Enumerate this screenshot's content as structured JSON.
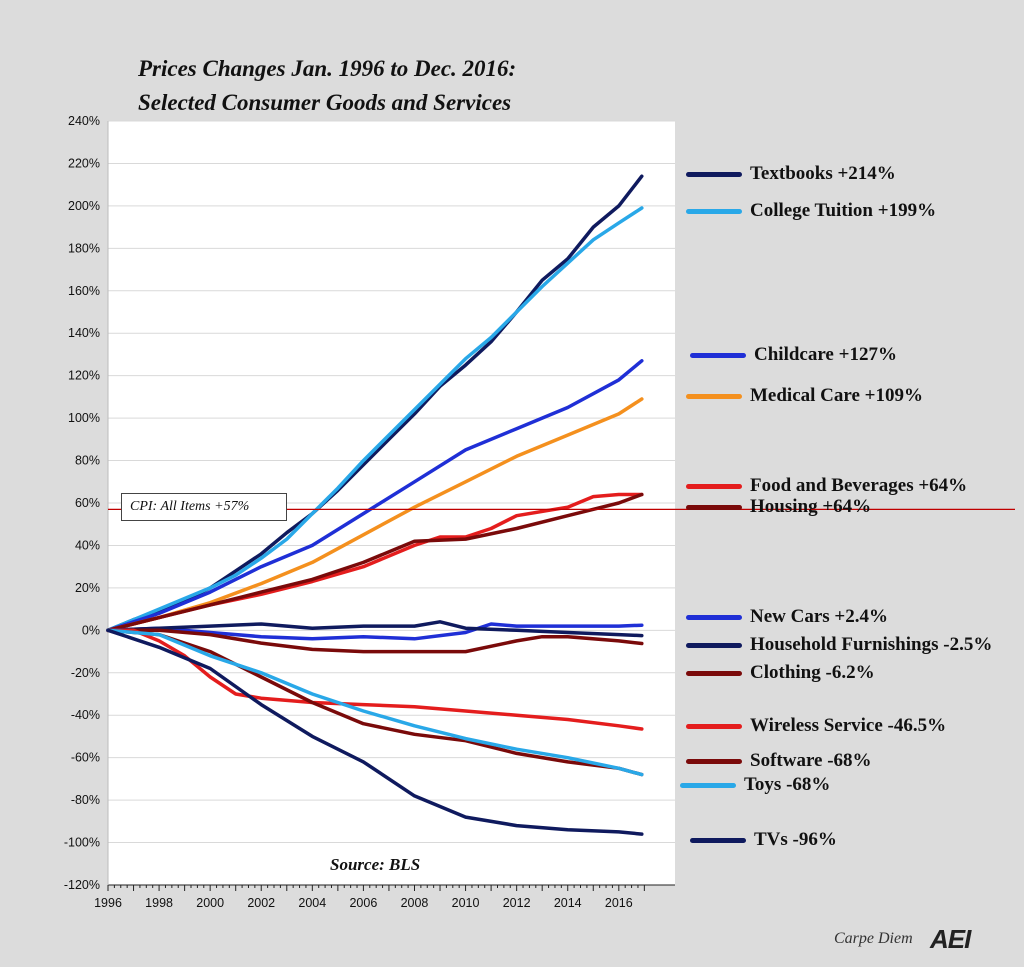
{
  "chart_data": {
    "type": "line",
    "title": "Prices Changes Jan. 1996 to Dec. 2016:",
    "subtitle": "Selected Consumer Goods and Services",
    "source": "Source: BLS",
    "xlabel": "",
    "ylabel": "",
    "xlim": [
      1996,
      2018.2
    ],
    "ylim": [
      -120,
      240
    ],
    "x_ticks": [
      "1996",
      "1998",
      "2000",
      "2002",
      "2004",
      "2006",
      "2008",
      "2010",
      "2012",
      "2014",
      "2016"
    ],
    "y_ticks": [
      "240%",
      "220%",
      "200%",
      "180%",
      "160%",
      "140%",
      "120%",
      "100%",
      "80%",
      "60%",
      "40%",
      "20%",
      "0%",
      "-20%",
      "-40%",
      "-60%",
      "-80%",
      "-100%",
      "-120%"
    ],
    "grid": "horizontal",
    "reference_line": {
      "label": "CPI: All Items +57%",
      "value": 57,
      "color": "#c00000"
    },
    "series": [
      {
        "name": "Textbooks +214%",
        "color": "#0f1a5e",
        "x": [
          1996,
          1997,
          1998,
          1999,
          2000,
          2001,
          2002,
          2003,
          2004,
          2005,
          2006,
          2007,
          2008,
          2009,
          2010,
          2011,
          2012,
          2013,
          2014,
          2015,
          2016,
          2016.9
        ],
        "values": [
          0,
          5,
          9,
          14,
          20,
          28,
          36,
          46,
          55,
          66,
          78,
          90,
          102,
          115,
          125,
          136,
          150,
          165,
          175,
          190,
          200,
          214
        ]
      },
      {
        "name": "College Tuition +199%",
        "color": "#29a8e8",
        "x": [
          1996,
          1997,
          1998,
          1999,
          2000,
          2001,
          2002,
          2003,
          2004,
          2005,
          2006,
          2007,
          2008,
          2009,
          2010,
          2011,
          2012,
          2013,
          2014,
          2015,
          2016,
          2016.9
        ],
        "values": [
          0,
          5,
          10,
          15,
          20,
          26,
          34,
          43,
          55,
          67,
          80,
          92,
          104,
          116,
          128,
          138,
          150,
          162,
          173,
          184,
          192,
          199
        ]
      },
      {
        "name": "Childcare +127%",
        "color": "#1f2fd6",
        "x": [
          1996,
          1998,
          2000,
          2002,
          2004,
          2006,
          2008,
          2010,
          2012,
          2014,
          2016,
          2016.9
        ],
        "values": [
          0,
          8,
          18,
          30,
          40,
          55,
          70,
          85,
          95,
          105,
          118,
          127
        ]
      },
      {
        "name": "Medical Care +109%",
        "color": "#f4901e",
        "x": [
          1996,
          1998,
          2000,
          2002,
          2004,
          2006,
          2008,
          2010,
          2012,
          2014,
          2016,
          2016.9
        ],
        "values": [
          0,
          6,
          13,
          22,
          32,
          45,
          58,
          70,
          82,
          92,
          102,
          109
        ]
      },
      {
        "name": "Food and Beverages +64%",
        "color": "#e41d1d",
        "x": [
          1996,
          1998,
          2000,
          2002,
          2004,
          2006,
          2008,
          2009,
          2010,
          2011,
          2012,
          2014,
          2015,
          2016,
          2016.9
        ],
        "values": [
          0,
          6,
          12,
          17,
          23,
          30,
          40,
          44,
          44,
          48,
          54,
          58,
          63,
          64,
          64
        ]
      },
      {
        "name": "Housing +64%",
        "color": "#7a0a0a",
        "x": [
          1996,
          1998,
          2000,
          2002,
          2004,
          2006,
          2008,
          2010,
          2012,
          2014,
          2016,
          2016.9
        ],
        "values": [
          0,
          6,
          12,
          18,
          24,
          32,
          42,
          43,
          48,
          54,
          60,
          64
        ]
      },
      {
        "name": "New Cars +2.4%",
        "color": "#1f2fd6",
        "x": [
          1996,
          1998,
          2000,
          2002,
          2004,
          2006,
          2008,
          2010,
          2011,
          2012,
          2014,
          2016,
          2016.9
        ],
        "values": [
          0,
          1,
          -1,
          -3,
          -4,
          -3,
          -4,
          -1,
          3,
          2,
          2,
          2,
          2.4
        ]
      },
      {
        "name": "Household Furnishings -2.5%",
        "color": "#0f1a5e",
        "x": [
          1996,
          1998,
          2000,
          2002,
          2004,
          2006,
          2008,
          2009,
          2010,
          2012,
          2014,
          2016,
          2016.9
        ],
        "values": [
          0,
          1,
          2,
          3,
          1,
          2,
          2,
          4,
          1,
          0,
          -1,
          -2,
          -2.5
        ]
      },
      {
        "name": "Clothing -6.2%",
        "color": "#7a0a0a",
        "x": [
          1996,
          1998,
          2000,
          2002,
          2004,
          2006,
          2008,
          2010,
          2012,
          2013,
          2014,
          2016,
          2016.9
        ],
        "values": [
          0,
          0,
          -2,
          -6,
          -9,
          -10,
          -10,
          -10,
          -5,
          -3,
          -3,
          -5,
          -6.2
        ]
      },
      {
        "name": "Wireless Service -46.5%",
        "color": "#e41d1d",
        "x": [
          1996,
          1997,
          1998,
          1999,
          2000,
          2001,
          2002,
          2004,
          2006,
          2008,
          2010,
          2012,
          2014,
          2016,
          2016.9
        ],
        "values": [
          0,
          0,
          -5,
          -12,
          -22,
          -30,
          -32,
          -34,
          -35,
          -36,
          -38,
          -40,
          -42,
          -45,
          -46.5
        ]
      },
      {
        "name": "Software -68%",
        "color": "#7a0a0a",
        "x": [
          1996,
          1998,
          2000,
          2002,
          2004,
          2006,
          2008,
          2010,
          2012,
          2014,
          2016,
          2016.9
        ],
        "values": [
          0,
          -2,
          -10,
          -22,
          -34,
          -44,
          -49,
          -52,
          -58,
          -62,
          -65,
          -68
        ]
      },
      {
        "name": "Toys -68%",
        "color": "#29a8e8",
        "x": [
          1996,
          1998,
          2000,
          2002,
          2004,
          2006,
          2008,
          2010,
          2012,
          2014,
          2016,
          2016.9
        ],
        "values": [
          0,
          -2,
          -12,
          -20,
          -30,
          -38,
          -45,
          -51,
          -56,
          -60,
          -65,
          -68
        ]
      },
      {
        "name": "TVs -96%",
        "color": "#0f1a5e",
        "x": [
          1996,
          1998,
          2000,
          2002,
          2004,
          2006,
          2008,
          2010,
          2012,
          2014,
          2016,
          2016.9
        ],
        "values": [
          0,
          -8,
          -18,
          -35,
          -50,
          -62,
          -78,
          -88,
          -92,
          -94,
          -95,
          -96
        ]
      }
    ]
  },
  "footer": {
    "brand_text": "Carpe Diem",
    "logo_text": "AEI"
  }
}
